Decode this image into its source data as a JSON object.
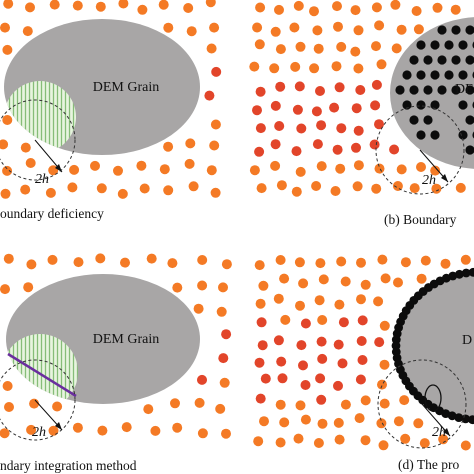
{
  "colors": {
    "grain": "#a8a6a6",
    "particle_orange": "#f47a25",
    "particle_red": "#e2452a",
    "boundary_particle": "#0c0c0c",
    "hatch_green": "#86bd78",
    "hatch_fill": "#e8f4df",
    "boundary_line": "#6a2e9e",
    "dashed_circle": "#333333"
  },
  "panels": {
    "a": {
      "grain_label": "DEM Grain",
      "kernel_label": "2h",
      "caption": "oundary deficiency"
    },
    "b": {
      "grain_label": "DE",
      "kernel_label": "2h",
      "caption": "(b) Boundary"
    },
    "c": {
      "grain_label": "DEM Grain",
      "kernel_label": "2h",
      "caption": "ndary integration method"
    },
    "d": {
      "grain_label": "D",
      "kernel_label": "2h",
      "caption": "(d) The pro"
    }
  }
}
